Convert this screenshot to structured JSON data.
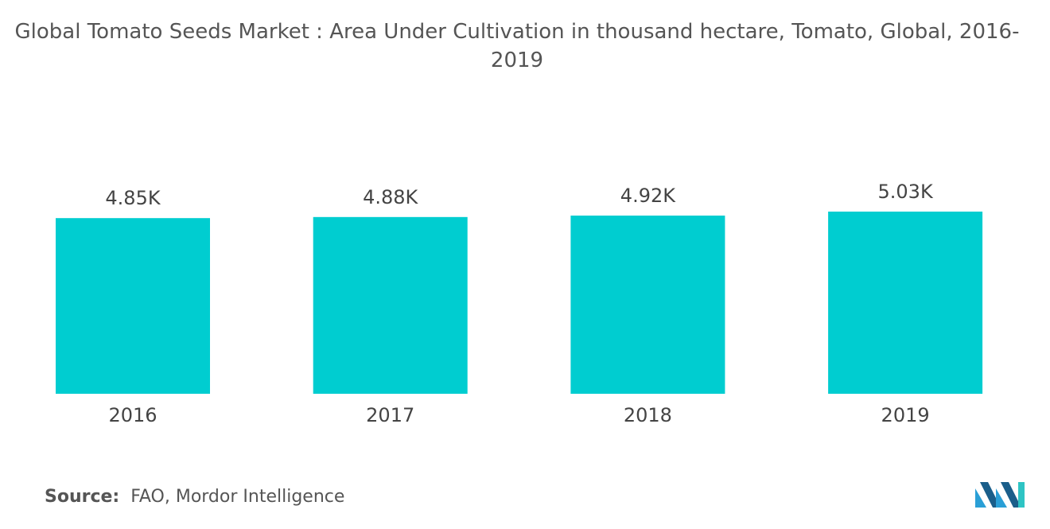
{
  "chart_data": {
    "type": "bar",
    "title": "Global Tomato Seeds Market : Area Under Cultivation in thousand hectare, Tomato, Global, 2016-2019",
    "categories": [
      "2016",
      "2017",
      "2018",
      "2019"
    ],
    "values": [
      4850,
      4880,
      4920,
      5030
    ],
    "value_labels": [
      "4.85K",
      "4.88K",
      "4.92K",
      "5.03K"
    ],
    "color": "#00cdd0",
    "source_label": "Source:",
    "source": "FAO, Mordor Intelligence"
  }
}
